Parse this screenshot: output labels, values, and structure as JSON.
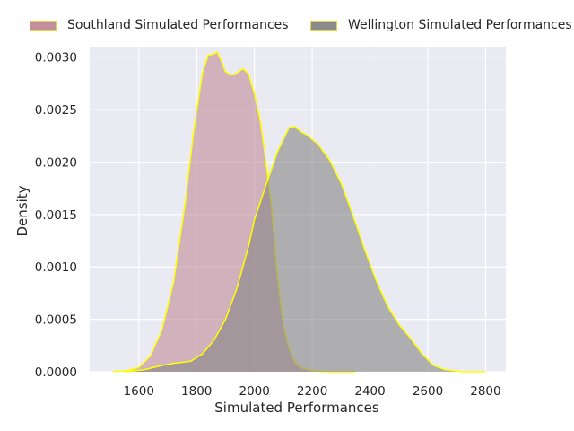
{
  "chart_data": {
    "type": "area",
    "xlabel": "Simulated Performances",
    "ylabel": "Density",
    "xlim": [
      1430,
      2870
    ],
    "ylim": [
      0,
      0.0031
    ],
    "xticks": [
      1600,
      1800,
      2000,
      2200,
      2400,
      2600,
      2800
    ],
    "xtick_labels": [
      "1600",
      "1800",
      "2000",
      "2200",
      "2400",
      "2600",
      "2800"
    ],
    "yticks": [
      0,
      0.0005,
      0.001,
      0.0015,
      0.002,
      0.0025,
      0.003
    ],
    "ytick_labels": [
      "0.0000",
      "0.0005",
      "0.0010",
      "0.0015",
      "0.0020",
      "0.0025",
      "0.0030"
    ],
    "grid": true,
    "legend_position": "top",
    "background": "#eaeaf2",
    "edge_color": "#ffff00",
    "series": [
      {
        "name": "Southland Simulated Performances",
        "color": "#c08a96",
        "x": [
          1510,
          1560,
          1600,
          1640,
          1680,
          1720,
          1760,
          1790,
          1820,
          1840,
          1860,
          1870,
          1880,
          1900,
          1920,
          1940,
          1960,
          1980,
          2000,
          2020,
          2040,
          2060,
          2080,
          2100,
          2120,
          2140,
          2160,
          2200,
          2250,
          2300,
          2350
        ],
        "y": [
          0,
          1e-05,
          4e-05,
          0.00015,
          0.0004,
          0.00085,
          0.0016,
          0.0023,
          0.00285,
          0.00302,
          0.00303,
          0.00305,
          0.003,
          0.00286,
          0.00283,
          0.00285,
          0.00289,
          0.00284,
          0.00265,
          0.0024,
          0.002,
          0.00155,
          0.0009,
          0.00045,
          0.00022,
          9e-05,
          4e-05,
          1e-05,
          0.0,
          0,
          0
        ]
      },
      {
        "name": "Wellington Simulated Performances",
        "color": "#858585",
        "x": [
          1550,
          1620,
          1680,
          1720,
          1780,
          1820,
          1860,
          1900,
          1940,
          1980,
          2000,
          2040,
          2080,
          2120,
          2140,
          2160,
          2180,
          2220,
          2260,
          2300,
          2340,
          2380,
          2420,
          2460,
          2500,
          2540,
          2580,
          2620,
          2660,
          2720,
          2800
        ],
        "y": [
          0,
          2e-05,
          6e-05,
          8e-05,
          0.0001,
          0.00017,
          0.0003,
          0.0005,
          0.0008,
          0.0012,
          0.00145,
          0.00178,
          0.0021,
          0.00233,
          0.00234,
          0.00229,
          0.00226,
          0.00217,
          0.00202,
          0.0018,
          0.0015,
          0.00118,
          0.00088,
          0.00063,
          0.00045,
          0.00032,
          0.00017,
          6e-05,
          2e-05,
          0,
          0
        ]
      }
    ]
  }
}
